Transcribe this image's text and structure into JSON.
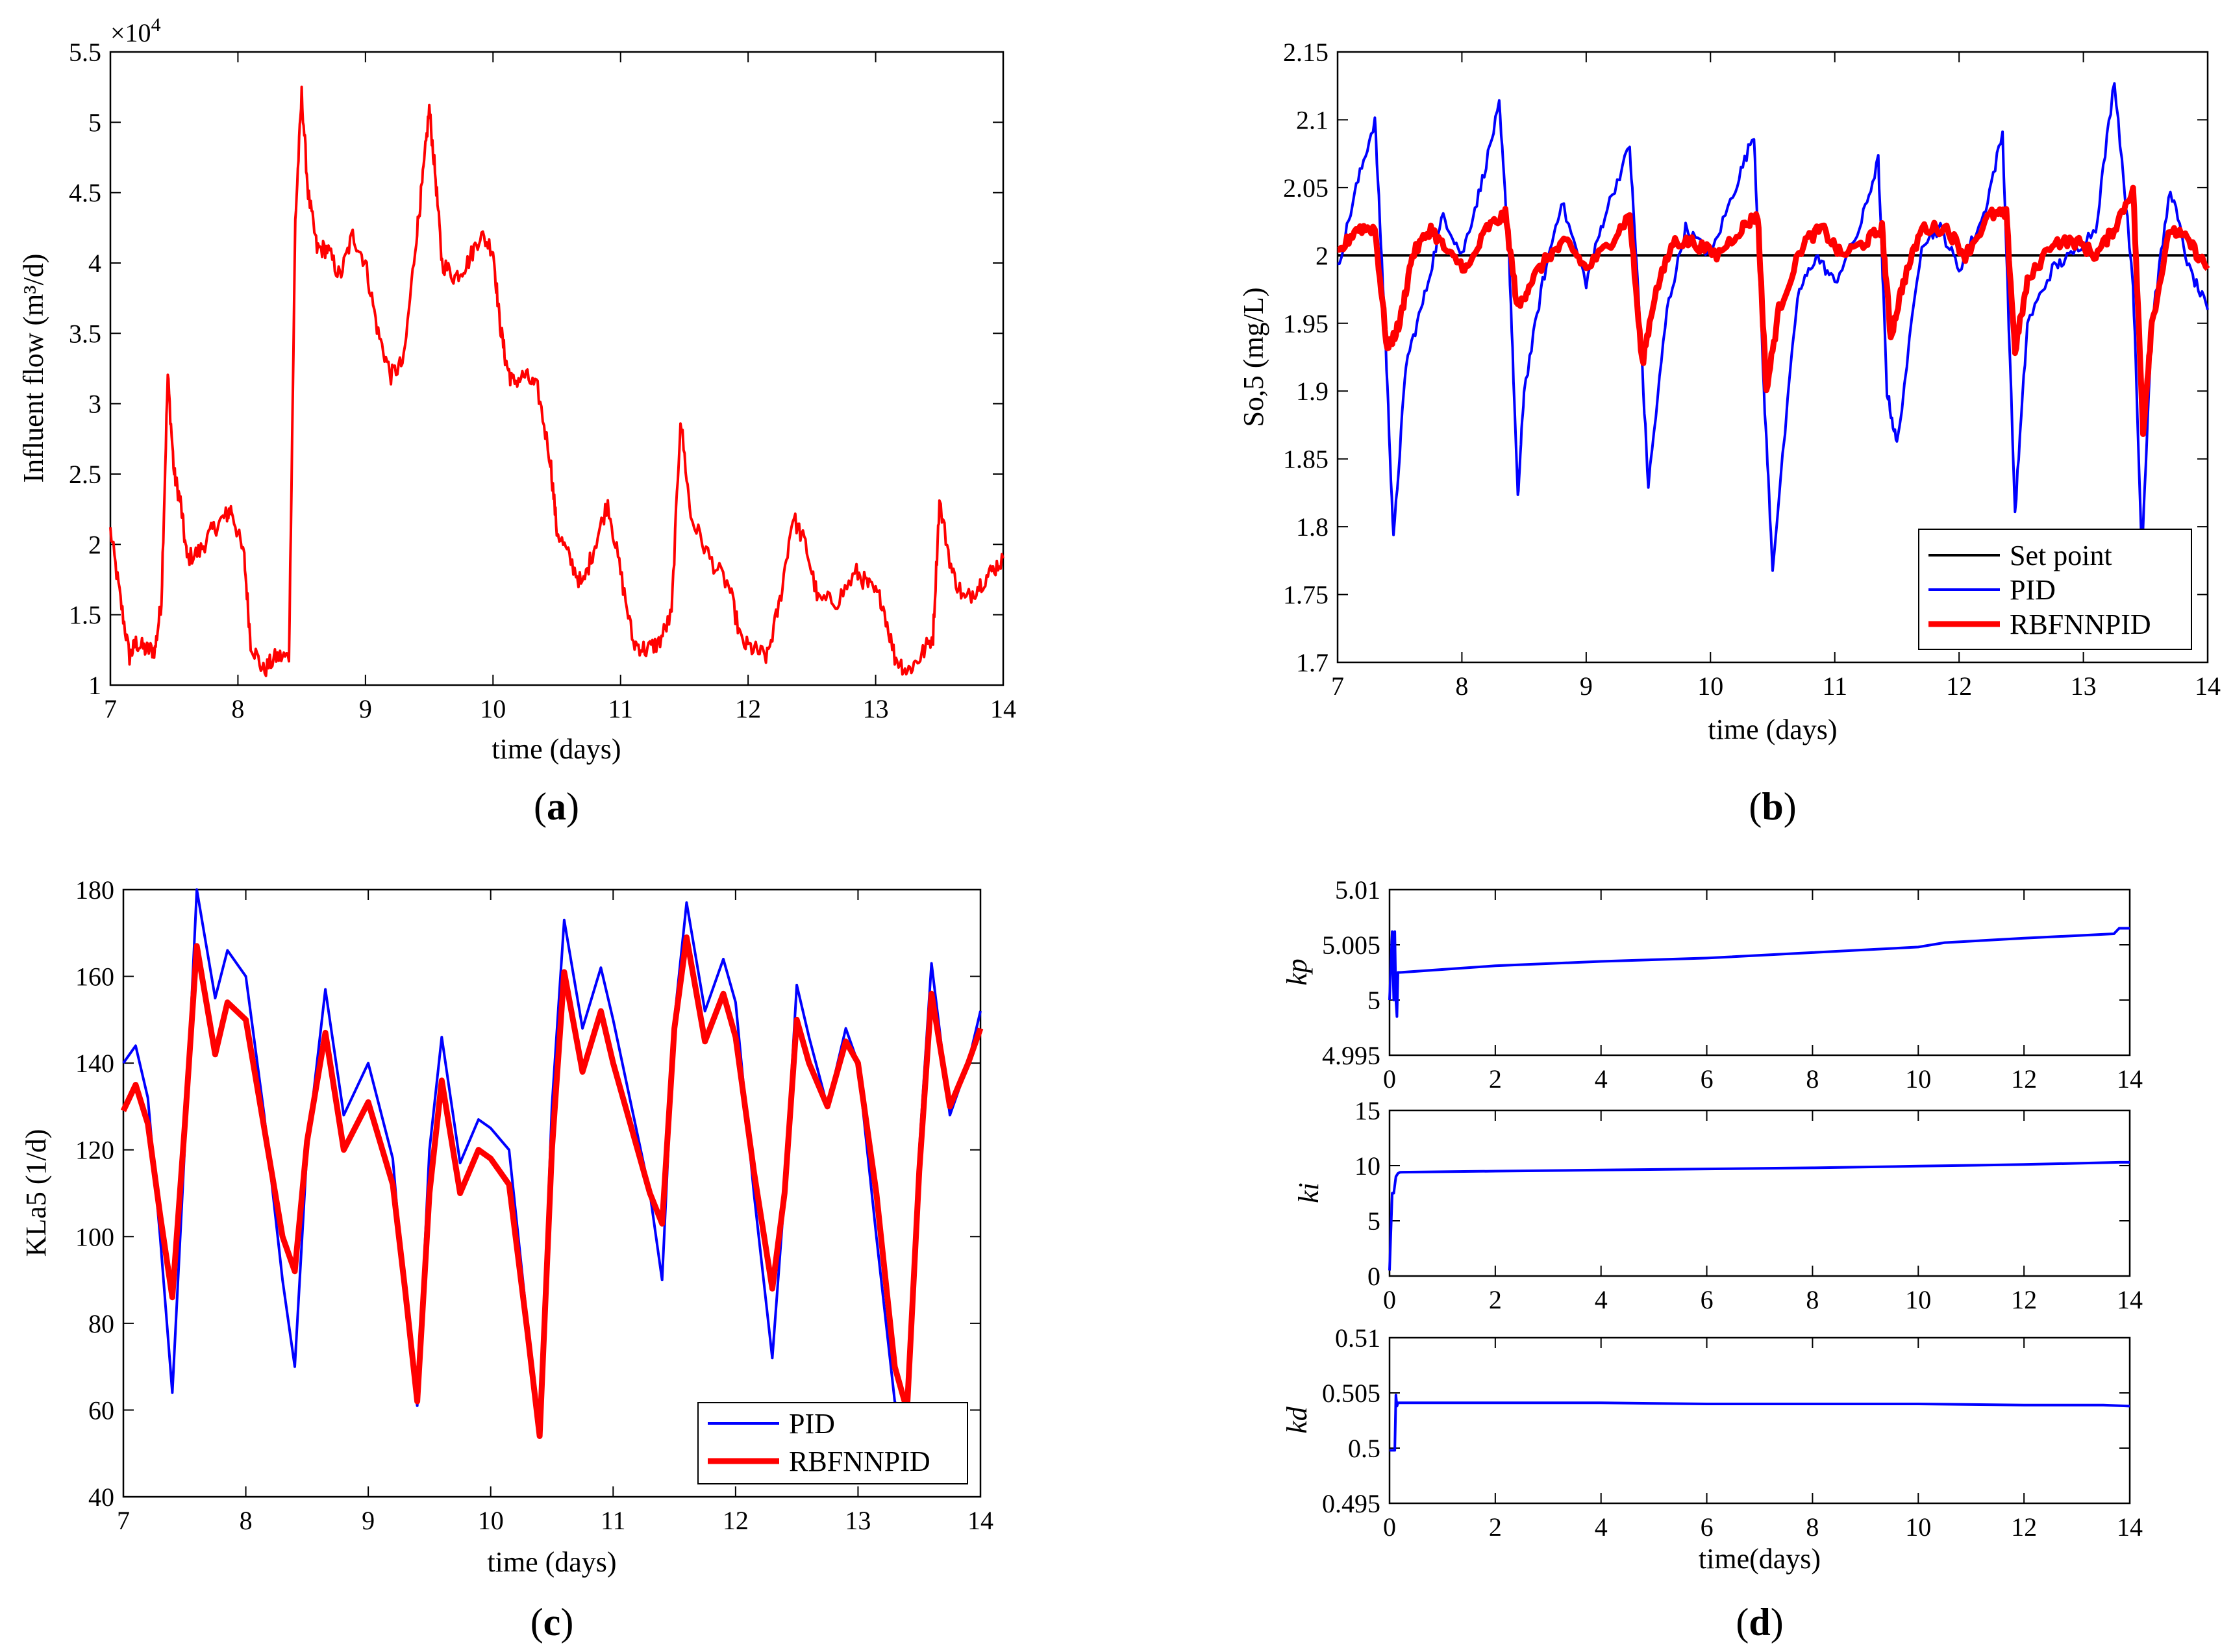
{
  "chart_data": [
    {
      "id": "a",
      "type": "line",
      "caption": "a",
      "xlabel": "time (days)",
      "ylabel": "Influent flow (m³/d)",
      "y_exponent_label": "×10",
      "y_exponent_power": "4",
      "xlim": [
        7,
        14
      ],
      "ylim": [
        1,
        5.5
      ],
      "xticks": [
        7,
        8,
        9,
        10,
        11,
        12,
        13,
        14
      ],
      "yticks": [
        1,
        1.5,
        2,
        2.5,
        3,
        3.5,
        4,
        4.5,
        5,
        5.5
      ],
      "series": [
        {
          "name": "Influent flow",
          "color": "#ff0000",
          "style": "noisy",
          "x": [
            7.0,
            7.08,
            7.15,
            7.2,
            7.28,
            7.35,
            7.4,
            7.45,
            7.5,
            7.55,
            7.6,
            7.7,
            7.8,
            7.9,
            7.95,
            8.05,
            8.1,
            8.2,
            8.3,
            8.4,
            8.45,
            8.5,
            8.55,
            8.62,
            8.7,
            8.8,
            8.9,
            9.0,
            9.1,
            9.2,
            9.3,
            9.4,
            9.45,
            9.5,
            9.55,
            9.6,
            9.7,
            9.8,
            9.9,
            10.0,
            10.05,
            10.1,
            10.15,
            10.25,
            10.35,
            10.45,
            10.5,
            10.6,
            10.7,
            10.8,
            10.9,
            11.0,
            11.1,
            11.2,
            11.3,
            11.4,
            11.47,
            11.55,
            11.7,
            11.85,
            11.95,
            12.05,
            12.15,
            12.25,
            12.35,
            12.45,
            12.55,
            12.7,
            12.85,
            12.95,
            13.05,
            13.15,
            13.25,
            13.35,
            13.45,
            13.5,
            13.6,
            13.7,
            13.8,
            13.9,
            14.0
          ],
          "y": [
            2.1,
            1.6,
            1.2,
            1.3,
            1.25,
            1.25,
            1.6,
            3.2,
            2.5,
            2.3,
            1.9,
            1.95,
            2.1,
            2.2,
            2.25,
            1.9,
            1.3,
            1.1,
            1.2,
            1.2,
            4.3,
            5.2,
            4.5,
            4.1,
            4.1,
            3.9,
            4.2,
            4.0,
            3.5,
            3.2,
            3.3,
            4.2,
            4.6,
            5.1,
            4.6,
            4.0,
            3.9,
            4.0,
            4.2,
            4.1,
            3.6,
            3.3,
            3.15,
            3.2,
            3.1,
            2.6,
            2.1,
            1.9,
            1.7,
            2.0,
            2.3,
            1.8,
            1.3,
            1.25,
            1.3,
            1.5,
            2.9,
            2.2,
            1.9,
            1.7,
            1.3,
            1.25,
            1.2,
            1.6,
            2.2,
            2.0,
            1.6,
            1.6,
            1.8,
            1.7,
            1.6,
            1.2,
            1.1,
            1.2,
            1.35,
            2.3,
            1.8,
            1.6,
            1.7,
            1.8,
            1.9
          ]
        }
      ]
    },
    {
      "id": "b",
      "type": "line",
      "caption": "b",
      "xlabel": "time (days)",
      "ylabel": "So,5 (mg/L)",
      "xlim": [
        7,
        14
      ],
      "ylim": [
        1.7,
        2.15
      ],
      "xticks": [
        7,
        8,
        9,
        10,
        11,
        12,
        13,
        14
      ],
      "yticks": [
        1.7,
        1.75,
        1.8,
        1.85,
        1.9,
        1.95,
        2,
        2.05,
        2.1,
        2.15
      ],
      "legend": {
        "position": "bottom-right",
        "entries": [
          "Set point",
          "PID",
          "RBFNNPID"
        ]
      },
      "series": [
        {
          "name": "Set point",
          "color": "#000000",
          "style": "plain",
          "x": [
            7,
            14
          ],
          "y": [
            2.0,
            2.0
          ]
        },
        {
          "name": "PID",
          "color": "#0000ff",
          "style": "noisy",
          "x": [
            7.0,
            7.15,
            7.3,
            7.38,
            7.45,
            7.55,
            7.7,
            7.85,
            8.0,
            8.15,
            8.3,
            8.38,
            8.45,
            8.5,
            8.65,
            8.8,
            9.0,
            9.15,
            9.35,
            9.42,
            9.5,
            9.65,
            9.8,
            10.0,
            10.2,
            10.35,
            10.43,
            10.5,
            10.7,
            10.85,
            11.0,
            11.2,
            11.35,
            11.42,
            11.5,
            11.7,
            11.85,
            12.0,
            12.2,
            12.35,
            12.45,
            12.55,
            12.75,
            12.9,
            13.1,
            13.25,
            13.4,
            13.47,
            13.55,
            13.7,
            13.85,
            14.0
          ],
          "y": [
            1.99,
            2.05,
            2.1,
            1.95,
            1.79,
            1.92,
            1.97,
            2.03,
            2.0,
            2.05,
            2.11,
            2.0,
            1.82,
            1.9,
            1.98,
            2.04,
            1.98,
            2.03,
            2.08,
            1.97,
            1.83,
            1.96,
            2.02,
            2.0,
            2.05,
            2.09,
            1.9,
            1.77,
            1.97,
            2.0,
            1.98,
            2.02,
            2.07,
            1.9,
            1.86,
            2.01,
            2.02,
            1.99,
            2.03,
            2.09,
            1.81,
            1.95,
            1.99,
            2.0,
            2.02,
            2.13,
            1.98,
            1.78,
            1.95,
            2.05,
            1.99,
            1.96
          ]
        },
        {
          "name": "RBFNNPID",
          "color": "#ff0000",
          "style": "noisy",
          "x": [
            7.0,
            7.15,
            7.3,
            7.4,
            7.5,
            7.6,
            7.75,
            7.9,
            8.05,
            8.2,
            8.35,
            8.45,
            8.55,
            8.7,
            8.85,
            9.0,
            9.2,
            9.35,
            9.45,
            9.55,
            9.7,
            9.85,
            10.05,
            10.25,
            10.38,
            10.45,
            10.55,
            10.75,
            10.9,
            11.05,
            11.25,
            11.38,
            11.45,
            11.55,
            11.7,
            11.9,
            12.05,
            12.25,
            12.38,
            12.45,
            12.55,
            12.75,
            12.95,
            13.1,
            13.25,
            13.4,
            13.48,
            13.55,
            13.7,
            13.85,
            14.0
          ],
          "y": [
            2.0,
            2.02,
            2.02,
            1.93,
            1.95,
            2.0,
            2.02,
            2.0,
            1.99,
            2.02,
            2.03,
            1.96,
            1.98,
            2.0,
            2.01,
            1.99,
            2.01,
            2.03,
            1.92,
            1.97,
            2.01,
            2.01,
            2.0,
            2.02,
            2.03,
            1.9,
            1.96,
            2.01,
            2.02,
            2.0,
            2.01,
            2.02,
            1.94,
            1.98,
            2.02,
            2.02,
            2.0,
            2.03,
            2.03,
            1.93,
            1.98,
            2.01,
            2.01,
            2.0,
            2.02,
            2.05,
            1.87,
            1.95,
            2.02,
            2.01,
            1.99
          ]
        }
      ]
    },
    {
      "id": "c",
      "type": "line",
      "caption": "c",
      "xlabel": "time (days)",
      "ylabel": "KLa5 (1/d)",
      "xlim": [
        7,
        14
      ],
      "ylim": [
        40,
        180
      ],
      "xticks": [
        7,
        8,
        9,
        10,
        11,
        12,
        13,
        14
      ],
      "yticks": [
        40,
        60,
        80,
        100,
        120,
        140,
        160,
        180
      ],
      "legend": {
        "position": "bottom-right",
        "entries": [
          "PID",
          "RBFNNPID"
        ]
      },
      "series": [
        {
          "name": "PID",
          "color": "#0000ff",
          "style": "plain",
          "x": [
            7.0,
            7.1,
            7.2,
            7.3,
            7.4,
            7.5,
            7.6,
            7.75,
            7.85,
            8.0,
            8.15,
            8.3,
            8.4,
            8.5,
            8.65,
            8.8,
            9.0,
            9.2,
            9.3,
            9.4,
            9.5,
            9.6,
            9.75,
            9.9,
            10.0,
            10.15,
            10.3,
            10.4,
            10.5,
            10.6,
            10.75,
            10.9,
            11.0,
            11.15,
            11.3,
            11.4,
            11.5,
            11.6,
            11.75,
            11.9,
            12.0,
            12.15,
            12.3,
            12.4,
            12.5,
            12.6,
            12.75,
            12.9,
            13.0,
            13.15,
            13.3,
            13.4,
            13.5,
            13.6,
            13.75,
            13.9,
            14.0
          ],
          "y": [
            140,
            144,
            132,
            100,
            64,
            120,
            180,
            155,
            166,
            160,
            128,
            90,
            70,
            120,
            157,
            128,
            140,
            118,
            85,
            61,
            120,
            146,
            117,
            127,
            125,
            120,
            80,
            55,
            130,
            173,
            148,
            162,
            150,
            130,
            110,
            90,
            150,
            177,
            152,
            164,
            154,
            110,
            72,
            110,
            158,
            146,
            130,
            148,
            140,
            100,
            62,
            55,
            120,
            163,
            128,
            140,
            152
          ]
        },
        {
          "name": "RBFNNPID",
          "color": "#ff0000",
          "style": "plain",
          "x": [
            7.0,
            7.1,
            7.2,
            7.3,
            7.4,
            7.5,
            7.6,
            7.75,
            7.85,
            8.0,
            8.15,
            8.3,
            8.4,
            8.5,
            8.65,
            8.8,
            9.0,
            9.2,
            9.3,
            9.4,
            9.5,
            9.6,
            9.75,
            9.9,
            10.0,
            10.15,
            10.3,
            10.4,
            10.5,
            10.6,
            10.75,
            10.9,
            11.0,
            11.15,
            11.3,
            11.4,
            11.5,
            11.6,
            11.75,
            11.9,
            12.0,
            12.15,
            12.3,
            12.4,
            12.5,
            12.6,
            12.75,
            12.9,
            13.0,
            13.15,
            13.3,
            13.4,
            13.5,
            13.6,
            13.75,
            13.9,
            14.0
          ],
          "y": [
            129,
            135,
            126,
            105,
            86,
            125,
            167,
            142,
            154,
            150,
            125,
            100,
            92,
            122,
            147,
            120,
            131,
            112,
            88,
            62,
            110,
            136,
            110,
            120,
            118,
            112,
            78,
            54,
            120,
            161,
            138,
            152,
            140,
            125,
            110,
            103,
            148,
            169,
            145,
            156,
            146,
            115,
            88,
            110,
            150,
            140,
            130,
            145,
            140,
            110,
            70,
            60,
            115,
            156,
            130,
            140,
            148
          ]
        }
      ]
    },
    {
      "id": "d",
      "type": "line",
      "caption": "d",
      "xlabel": "time(days)",
      "subplots": [
        {
          "ylabel": "kp",
          "xlim": [
            0,
            14
          ],
          "ylim": [
            4.995,
            5.01
          ],
          "xticks": [
            0,
            2,
            4,
            6,
            8,
            10,
            12,
            14
          ],
          "yticks": [
            4.995,
            5,
            5.005,
            5.01
          ],
          "series": [
            {
              "name": "kp",
              "color": "#0000ff",
              "style": "plain",
              "x": [
                0,
                0.05,
                0.08,
                0.1,
                0.12,
                0.14,
                0.16,
                0.2,
                2,
                4,
                6,
                8,
                10,
                10.5,
                12,
                13.7,
                13.8,
                14
              ],
              "y": [
                5.0,
                5.0062,
                5.0,
                5.0062,
                5.0,
                4.9985,
                5.0025,
                5.0025,
                5.0031,
                5.0035,
                5.0038,
                5.0043,
                5.0048,
                5.0052,
                5.0056,
                5.006,
                5.0065,
                5.0065
              ]
            }
          ]
        },
        {
          "ylabel": "ki",
          "xlim": [
            0,
            14
          ],
          "ylim": [
            0,
            15
          ],
          "xticks": [
            0,
            2,
            4,
            6,
            8,
            10,
            12,
            14
          ],
          "yticks": [
            0,
            5,
            10,
            15
          ],
          "series": [
            {
              "name": "ki",
              "color": "#0000ff",
              "style": "plain",
              "x": [
                0,
                0.05,
                0.08,
                0.12,
                0.16,
                0.2,
                2,
                4,
                6,
                8,
                10,
                12,
                13.8,
                14
              ],
              "y": [
                0.5,
                7.5,
                7.5,
                9.0,
                9.3,
                9.4,
                9.5,
                9.6,
                9.7,
                9.8,
                9.95,
                10.1,
                10.3,
                10.3
              ]
            }
          ]
        },
        {
          "ylabel": "kd",
          "xlim": [
            0,
            14
          ],
          "ylim": [
            0.495,
            0.51
          ],
          "xticks": [
            0,
            2,
            4,
            6,
            8,
            10,
            12,
            14
          ],
          "yticks": [
            0.495,
            0.5,
            0.505,
            0.51
          ],
          "series": [
            {
              "name": "kd",
              "color": "#0000ff",
              "style": "plain",
              "x": [
                0,
                0.05,
                0.1,
                0.12,
                0.14,
                0.16,
                0.2,
                2,
                4,
                6,
                8,
                10,
                12,
                13.5,
                14
              ],
              "y": [
                0.4998,
                0.4998,
                0.4998,
                0.5048,
                0.5038,
                0.5041,
                0.5041,
                0.5041,
                0.5041,
                0.504,
                0.504,
                0.504,
                0.5039,
                0.5039,
                0.5038
              ]
            }
          ]
        }
      ]
    }
  ]
}
